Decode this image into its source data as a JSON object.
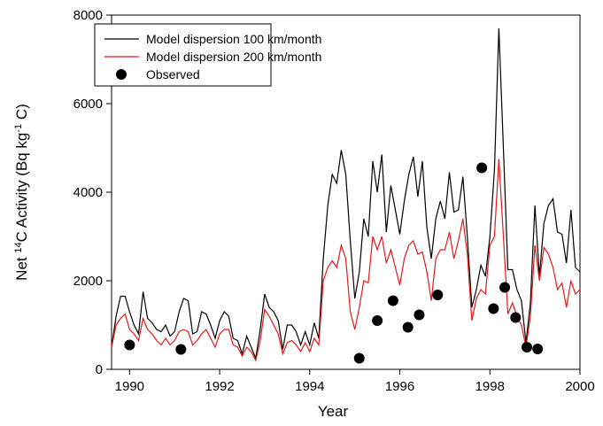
{
  "chart_data": {
    "type": "line",
    "xlabel": "Year",
    "ylabel": [
      {
        "text": "Net "
      },
      {
        "text": "14",
        "sup": true
      },
      {
        "text": "C Activity (Bq kg"
      },
      {
        "text": "-1",
        "sup": true
      },
      {
        "text": " C)"
      }
    ],
    "x": [
      1989.6,
      1989.7,
      1989.8,
      1989.9,
      1990.0,
      1990.1,
      1990.2,
      1990.3,
      1990.4,
      1990.5,
      1990.6,
      1990.7,
      1990.8,
      1990.9,
      1991.0,
      1991.1,
      1991.2,
      1991.3,
      1991.4,
      1991.5,
      1991.6,
      1991.7,
      1991.8,
      1991.9,
      1992.0,
      1992.1,
      1992.2,
      1992.3,
      1992.4,
      1992.5,
      1992.6,
      1992.7,
      1992.8,
      1992.9,
      1993.0,
      1993.1,
      1993.2,
      1993.3,
      1993.4,
      1993.5,
      1993.6,
      1993.7,
      1993.8,
      1993.9,
      1994.0,
      1994.1,
      1994.2,
      1994.3,
      1994.4,
      1994.5,
      1994.6,
      1994.7,
      1994.8,
      1994.9,
      1995.0,
      1995.1,
      1995.2,
      1995.3,
      1995.4,
      1995.5,
      1995.6,
      1995.7,
      1995.8,
      1995.9,
      1996.0,
      1996.1,
      1996.2,
      1996.3,
      1996.4,
      1996.5,
      1996.6,
      1996.7,
      1996.8,
      1996.9,
      1997.0,
      1997.1,
      1997.2,
      1997.3,
      1997.4,
      1997.5,
      1997.6,
      1997.7,
      1997.8,
      1997.9,
      1998.0,
      1998.1,
      1998.2,
      1998.3,
      1998.4,
      1998.5,
      1998.6,
      1998.7,
      1998.8,
      1998.9,
      1999.0,
      1999.1,
      1999.2,
      1999.3,
      1999.4,
      1999.5,
      1999.6,
      1999.7,
      1999.8,
      1999.9,
      2000.0
    ],
    "series": [
      {
        "name": "Model dispersion 100 km/month",
        "color": "#000000",
        "values": [
          500,
          1200,
          1650,
          1650,
          1300,
          1000,
          800,
          1750,
          1150,
          1050,
          900,
          850,
          1000,
          750,
          850,
          1300,
          1600,
          1550,
          800,
          850,
          1300,
          1250,
          1000,
          700,
          1100,
          1300,
          1200,
          700,
          650,
          350,
          750,
          500,
          250,
          900,
          1700,
          1400,
          1300,
          1100,
          450,
          1000,
          1000,
          850,
          550,
          850,
          550,
          1050,
          700,
          2500,
          3700,
          4400,
          4200,
          4950,
          4400,
          2900,
          1600,
          2200,
          3400,
          3000,
          4700,
          4000,
          4850,
          3100,
          4150,
          3600,
          3050,
          3800,
          4400,
          4800,
          3900,
          4700,
          3200,
          2500,
          3400,
          3800,
          3400,
          4450,
          3550,
          3600,
          4350,
          3000,
          1400,
          1800,
          2350,
          2100,
          3000,
          4500,
          7700,
          5000,
          2250,
          2250,
          1800,
          1550,
          600,
          1500,
          3700,
          2100,
          3300,
          3700,
          3850,
          3100,
          3050,
          2400,
          3600,
          2300,
          2200
        ]
      },
      {
        "name": "Model dispersion 200 km/month",
        "color": "#e31a1c",
        "values": [
          500,
          1000,
          1150,
          1250,
          900,
          800,
          650,
          1150,
          900,
          800,
          650,
          550,
          700,
          550,
          650,
          850,
          900,
          850,
          550,
          650,
          800,
          900,
          700,
          500,
          800,
          900,
          900,
          550,
          500,
          300,
          500,
          400,
          200,
          650,
          1350,
          1200,
          1000,
          800,
          350,
          600,
          650,
          550,
          400,
          600,
          400,
          700,
          550,
          2000,
          2300,
          2450,
          2300,
          2800,
          2500,
          1300,
          900,
          1400,
          2000,
          1950,
          3000,
          2700,
          3000,
          2400,
          2700,
          2300,
          1900,
          2500,
          2800,
          2900,
          2600,
          2650,
          2200,
          1550,
          2500,
          2700,
          2700,
          3100,
          2500,
          2900,
          3400,
          2600,
          1100,
          1600,
          1800,
          1700,
          2800,
          3000,
          4750,
          3000,
          1250,
          1500,
          1200,
          1000,
          500,
          1200,
          2800,
          2000,
          2750,
          2600,
          2300,
          1800,
          1950,
          1400,
          2000,
          1700,
          1800
        ]
      },
      {
        "name": "Observed",
        "type": "scatter",
        "color": "#000000",
        "x": [
          1990.0,
          1991.14,
          1995.1,
          1995.5,
          1995.85,
          1996.18,
          1996.43,
          1996.84,
          1997.82,
          1998.08,
          1998.33,
          1998.57,
          1998.82,
          1999.06
        ],
        "values": [
          550,
          450,
          250,
          1100,
          1550,
          950,
          1230,
          1680,
          4550,
          1370,
          1850,
          1170,
          500,
          460
        ]
      }
    ],
    "xlim": [
      1989.6,
      2000
    ],
    "xticks": [
      1990,
      1992,
      1994,
      1996,
      1998,
      2000
    ],
    "ylim": [
      0,
      8000
    ],
    "yticks": [
      0,
      2000,
      4000,
      6000,
      8000
    ],
    "legend": "upper left",
    "grid": false
  }
}
